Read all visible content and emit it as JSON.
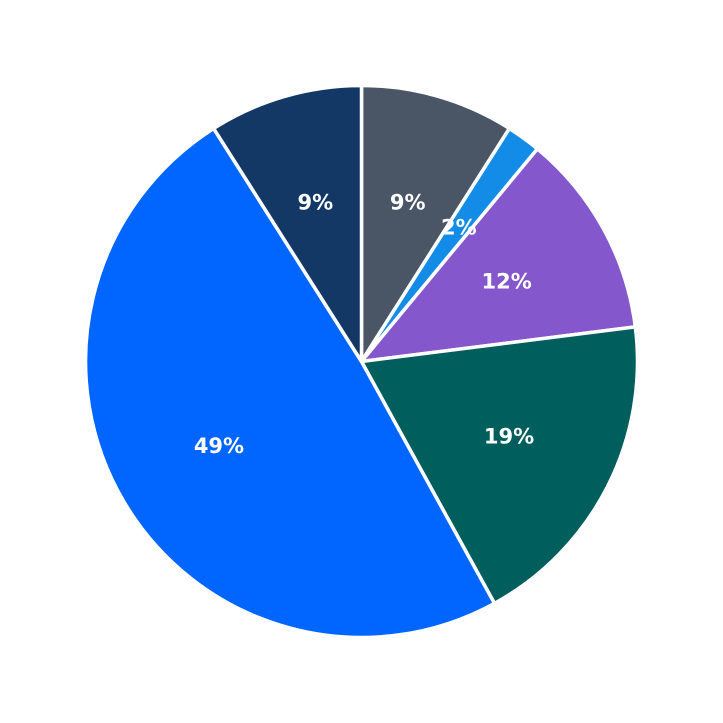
{
  "chart_data": {
    "type": "pie",
    "title": "",
    "start_angle_deg": 90,
    "direction": "clockwise",
    "slices": [
      {
        "label": "9%",
        "value": 9,
        "color": "#4a5565"
      },
      {
        "label": "2%",
        "value": 2,
        "color": "#138ce8"
      },
      {
        "label": "12%",
        "value": 12,
        "color": "#8457cd"
      },
      {
        "label": "19%",
        "value": 19,
        "color": "#005e5c"
      },
      {
        "label": "49%",
        "value": 49,
        "color": "#0066ff"
      },
      {
        "label": "9%",
        "value": 9,
        "color": "#143865"
      }
    ]
  }
}
